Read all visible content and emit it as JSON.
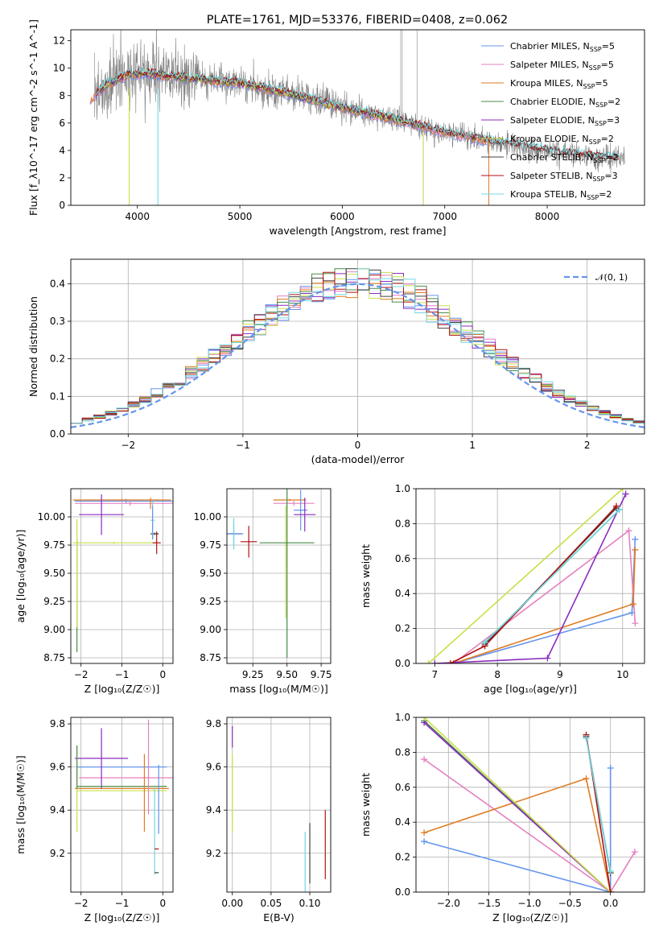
{
  "colors": {
    "Chabrier MILES": "#6495ed",
    "Salpeter MILES": "#e57fbf",
    "Kroupa MILES": "#e07b22",
    "Chabrier ELODIE": "#4a8c4a",
    "Salpeter ELODIE": "#8a2bbf",
    "Kroupa ELODIE": "#c8e04a",
    "Chabrier STELIB": "#404040",
    "Salpeter STELIB": "#b01010",
    "Kroupa STELIB": "#70d8e0",
    "data": "#808080",
    "normal": "#6495ed"
  },
  "chart_data": [
    {
      "id": "spectrum",
      "type": "line",
      "title": "PLATE=1761, MJD=53376, FIBERID=0408, z=0.062",
      "xlabel": "wavelength [Angstrom, rest frame]",
      "ylabel": "Flux [f_λ10^-17 erg cm^-2 s^-1 A^-1]",
      "xlim": [
        3350,
        8950
      ],
      "ylim": [
        0,
        12.8
      ],
      "xticks": [
        4000,
        5000,
        6000,
        7000,
        8000
      ],
      "yticks": [
        0,
        2,
        4,
        6,
        8,
        10,
        12
      ],
      "grid": false,
      "legend_position": "upper right",
      "legend": [
        {
          "model": "Chabrier MILES",
          "label": "Chabrier MILES, N",
          "sub": "SSP",
          "tail": "=5"
        },
        {
          "model": "Salpeter MILES",
          "label": "Salpeter MILES, N",
          "sub": "SSP",
          "tail": "=5"
        },
        {
          "model": "Kroupa MILES",
          "label": "Kroupa MILES, N",
          "sub": "SSP",
          "tail": "=5"
        },
        {
          "model": "Chabrier ELODIE",
          "label": "Chabrier ELODIE, N",
          "sub": "SSP",
          "tail": "=2"
        },
        {
          "model": "Salpeter ELODIE",
          "label": "Salpeter ELODIE, N",
          "sub": "SSP",
          "tail": "=3"
        },
        {
          "model": "Kroupa ELODIE",
          "label": "Kroupa ELODIE, N",
          "sub": "SSP",
          "tail": "=2"
        },
        {
          "model": "Chabrier STELIB",
          "label": "Chabrier STELIB, N",
          "sub": "SSP",
          "tail": "=2"
        },
        {
          "model": "Salpeter STELIB",
          "label": "Salpeter STELIB, N",
          "sub": "SSP",
          "tail": "=3"
        },
        {
          "model": "Kroupa STELIB",
          "label": "Kroupa STELIB, N",
          "sub": "SSP",
          "tail": "=2"
        }
      ],
      "continuum": [
        [
          3550,
          7.8
        ],
        [
          3700,
          8.8
        ],
        [
          3900,
          9.5
        ],
        [
          4100,
          9.6
        ],
        [
          4300,
          9.4
        ],
        [
          4600,
          9.2
        ],
        [
          5000,
          8.9
        ],
        [
          5500,
          8.1
        ],
        [
          6000,
          7.1
        ],
        [
          6500,
          6.3
        ],
        [
          7000,
          5.3
        ],
        [
          7500,
          4.6
        ],
        [
          8000,
          4.0
        ],
        [
          8500,
          3.5
        ],
        [
          8700,
          3.4
        ]
      ],
      "model_extent": {
        "MILES": [
          3540,
          7430
        ],
        "ELODIE": [
          3600,
          6790
        ],
        "STELIB": [
          3600,
          8700
        ]
      },
      "data_range": [
        3580,
        8760
      ]
    },
    {
      "id": "residuals",
      "type": "histogram",
      "xlabel": "(data-model)/error",
      "ylabel": "Normed distribution",
      "xlim": [
        -2.5,
        2.5
      ],
      "ylim": [
        0,
        0.465
      ],
      "xticks": [
        -2,
        -1,
        0,
        1,
        2
      ],
      "yticks": [
        0.0,
        0.1,
        0.2,
        0.3,
        0.4
      ],
      "grid": true,
      "legend": [
        {
          "label": "𝒩(0, 1)",
          "style": "dashed"
        }
      ],
      "legend_position": "upper right",
      "bin_width": 0.1
    },
    {
      "id": "age-vs-Z",
      "type": "scatter",
      "xlabel": "Z [log₁₀(Z/Z☉)]",
      "ylabel": "age  [log₁₀(age/yr)]",
      "xlim": [
        -2.25,
        0.25
      ],
      "ylim": [
        8.7,
        10.25
      ],
      "xticks": [
        -2,
        -1,
        0
      ],
      "yticks": [
        8.75,
        9.0,
        9.25,
        9.5,
        9.75,
        10.0
      ],
      "grid": true
    },
    {
      "id": "age-vs-mass",
      "type": "scatter",
      "xlabel": "mass [log₁₀(M/M☉)]",
      "ylabel": "",
      "xlim": [
        9.06,
        9.82
      ],
      "ylim": [
        8.7,
        10.25
      ],
      "xticks": [
        9.25,
        9.5,
        9.75
      ],
      "yticks": [
        8.75,
        9.0,
        9.25,
        9.5,
        9.75,
        10.0
      ],
      "grid": true
    },
    {
      "id": "weight-vs-age",
      "type": "line",
      "xlabel": "age  [log₁₀(age/yr)]",
      "ylabel": "mass weight",
      "xlim": [
        6.7,
        10.35
      ],
      "ylim": [
        0,
        1.0
      ],
      "xticks": [
        7,
        8,
        9,
        10
      ],
      "yticks": [
        0.0,
        0.2,
        0.4,
        0.6,
        0.8,
        1.0
      ],
      "grid": true,
      "series": [
        {
          "model": "Chabrier MILES",
          "x": [
            7.3,
            10.15,
            10.2
          ],
          "y": [
            0.0,
            0.29,
            0.71
          ]
        },
        {
          "model": "Salpeter MILES",
          "x": [
            7.3,
            10.1,
            10.2
          ],
          "y": [
            0.0,
            0.76,
            0.23
          ]
        },
        {
          "model": "Kroupa MILES",
          "x": [
            7.3,
            10.17,
            10.2
          ],
          "y": [
            0.0,
            0.34,
            0.65
          ]
        },
        {
          "model": "Chabrier ELODIE",
          "x": [
            7.8,
            9.95
          ],
          "y": [
            0.12,
            0.88
          ]
        },
        {
          "model": "Salpeter ELODIE",
          "x": [
            7.0,
            8.8,
            10.05
          ],
          "y": [
            0.0,
            0.03,
            0.97
          ]
        },
        {
          "model": "Kroupa ELODIE",
          "x": [
            6.9,
            10.0
          ],
          "y": [
            0.0,
            1.0
          ]
        },
        {
          "model": "Chabrier STELIB",
          "x": [
            7.8,
            9.9
          ],
          "y": [
            0.11,
            0.89
          ]
        },
        {
          "model": "Salpeter STELIB",
          "x": [
            7.25,
            7.8,
            9.9
          ],
          "y": [
            0.0,
            0.1,
            0.9
          ]
        },
        {
          "model": "Kroupa STELIB",
          "x": [
            7.8,
            9.95
          ],
          "y": [
            0.12,
            0.88
          ]
        }
      ]
    },
    {
      "id": "mass-vs-Z",
      "type": "scatter",
      "xlabel": "Z [log₁₀(Z/Z☉)]",
      "ylabel": "mass [log₁₀(M/M☉)]",
      "xlim": [
        -2.25,
        0.25
      ],
      "ylim": [
        9.02,
        9.83
      ],
      "xticks": [
        -2,
        -1,
        0
      ],
      "yticks": [
        9.2,
        9.4,
        9.6,
        9.8
      ],
      "grid": true
    },
    {
      "id": "mass-vs-EBV",
      "type": "scatter",
      "xlabel": "E(B-V)",
      "ylabel": "",
      "xlim": [
        -0.007,
        0.127
      ],
      "ylim": [
        9.02,
        9.83
      ],
      "xticks": [
        0.0,
        0.05,
        0.1
      ],
      "yticks": [
        9.2,
        9.4,
        9.6,
        9.8
      ],
      "grid": true
    },
    {
      "id": "weight-vs-Z",
      "type": "line",
      "xlabel": "Z [log₁₀(Z/Z☉)]",
      "ylabel": "mass weight",
      "xlim": [
        -2.4,
        0.42
      ],
      "ylim": [
        0,
        1.0
      ],
      "xticks": [
        -2.0,
        -1.5,
        -1.0,
        -0.5,
        0.0
      ],
      "yticks": [
        0.0,
        0.2,
        0.4,
        0.6,
        0.8,
        1.0
      ],
      "grid": true,
      "series": [
        {
          "model": "Chabrier MILES",
          "x": [
            -2.3,
            0.0,
            0.0
          ],
          "y": [
            0.29,
            0.0,
            0.71
          ]
        },
        {
          "model": "Salpeter MILES",
          "x": [
            -2.3,
            0.0,
            0.3
          ],
          "y": [
            0.76,
            0.0,
            0.23
          ]
        },
        {
          "model": "Kroupa MILES",
          "x": [
            -2.3,
            -0.3,
            0.0
          ],
          "y": [
            0.34,
            0.65,
            0.0
          ]
        },
        {
          "model": "Chabrier ELODIE",
          "x": [
            -2.3,
            0.0
          ],
          "y": [
            0.98,
            0.0
          ]
        },
        {
          "model": "Salpeter ELODIE",
          "x": [
            -2.3,
            0.0,
            0.0
          ],
          "y": [
            0.97,
            0.0,
            0.0
          ]
        },
        {
          "model": "Kroupa ELODIE",
          "x": [
            -2.3,
            0.0
          ],
          "y": [
            1.0,
            0.0
          ]
        },
        {
          "model": "Chabrier STELIB",
          "x": [
            -0.3,
            0.0
          ],
          "y": [
            0.89,
            0.11
          ]
        },
        {
          "model": "Salpeter STELIB",
          "x": [
            -0.3,
            0.0
          ],
          "y": [
            0.9,
            0.0
          ]
        },
        {
          "model": "Kroupa STELIB",
          "x": [
            -0.3,
            0.0
          ],
          "y": [
            0.88,
            0.12
          ]
        }
      ]
    }
  ]
}
